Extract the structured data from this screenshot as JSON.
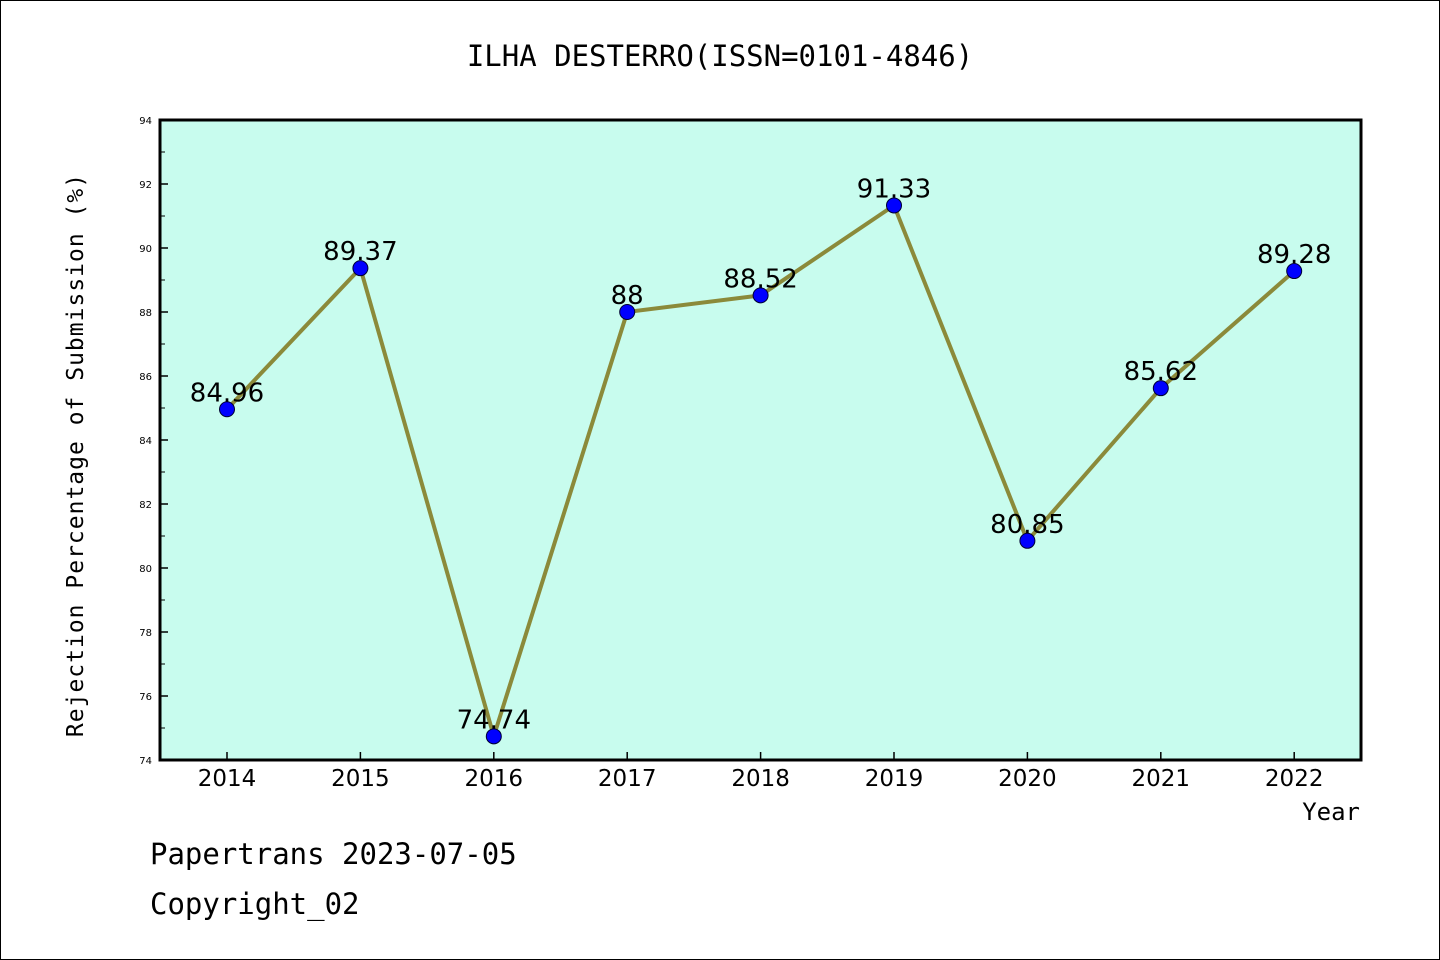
{
  "chart_data": {
    "type": "line",
    "title": "ILHA DESTERRO(ISSN=0101-4846)",
    "xlabel": "Year",
    "ylabel": "Rejection Percentage of Submission (%)",
    "categories": [
      "2014",
      "2015",
      "2016",
      "2017",
      "2018",
      "2019",
      "2020",
      "2021",
      "2022"
    ],
    "series": [
      {
        "values": [
          84.96,
          89.37,
          74.74,
          88,
          88.52,
          91.33,
          80.85,
          85.62,
          89.28
        ],
        "data_labels": [
          "84.96",
          "89.37",
          "74.74",
          "88",
          "88.52",
          "91.33",
          "80.85",
          "85.62",
          "89.28"
        ]
      }
    ],
    "ylim": [
      74,
      94
    ],
    "yticks": [
      "74",
      "76",
      "78",
      "80",
      "82",
      "84",
      "86",
      "88",
      "90",
      "92",
      "94"
    ],
    "grid": false,
    "colors": {
      "plot_background": "#c8fcee",
      "line": "#8b8a3a",
      "marker": "#0000ff"
    }
  },
  "footer": {
    "line1": "Papertrans 2023-07-05",
    "line2": "Copyright_02"
  }
}
